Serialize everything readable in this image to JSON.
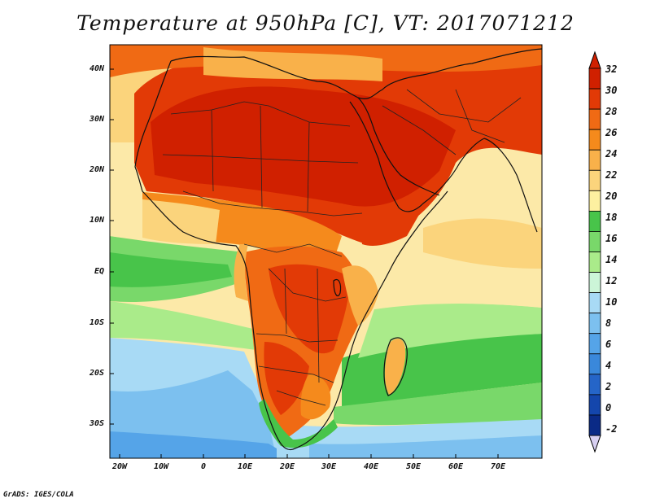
{
  "title": "Temperature at 950hPa [C], VT: 2017071212",
  "credit": "GrADS: IGES/COLA",
  "lat_labels": [
    "40N",
    "30N",
    "20N",
    "10N",
    "EQ",
    "10S",
    "20S",
    "30S"
  ],
  "lon_labels": [
    "20W",
    "10W",
    "0",
    "10E",
    "20E",
    "30E",
    "40E",
    "50E",
    "60E",
    "70E"
  ],
  "colorbar": {
    "labels": [
      "32",
      "30",
      "28",
      "26",
      "24",
      "22",
      "20",
      "18",
      "16",
      "14",
      "12",
      "10",
      "8",
      "6",
      "4",
      "2",
      "0",
      "-2"
    ],
    "colors": [
      "#d02000",
      "#e23a06",
      "#f06a14",
      "#f58a1c",
      "#f9b14a",
      "#fbd47c",
      "#fdf0a0",
      "#48c44a",
      "#79d86a",
      "#aaeb8a",
      "#ccf5d8",
      "#a8daf5",
      "#7cc0ef",
      "#55a4e8",
      "#3a88db",
      "#2565c8",
      "#1446ac",
      "#0a2a86"
    ],
    "over_color": "#d02000",
    "under_color": "#d8d0f2"
  }
}
